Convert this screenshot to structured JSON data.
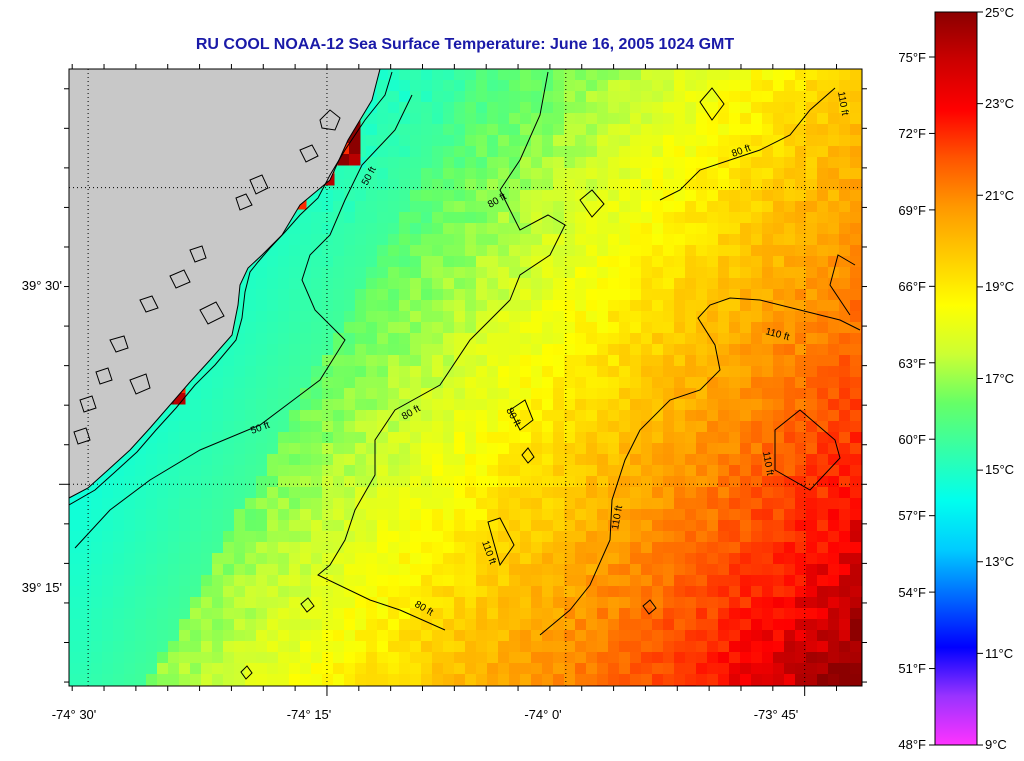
{
  "title": "RU COOL  NOAA-12  Sea Surface Temperature:  June 16, 2005 1024 GMT",
  "colors": {
    "title": "#1a1aa8",
    "land": "#c8c8c8",
    "coastline": "#000000",
    "contour": "#000000",
    "gridline": "#000000"
  },
  "map": {
    "lon_range": [
      -74.52,
      -73.69
    ],
    "lat_range": [
      39.08,
      39.6
    ],
    "lon_ticks": [
      {
        "value": -74.5,
        "label": "-74° 30'"
      },
      {
        "value": -74.25,
        "label": "-74° 15'"
      },
      {
        "value": -74.0,
        "label": "-74° 0'"
      },
      {
        "value": -73.75,
        "label": "-73° 45'"
      }
    ],
    "lat_ticks": [
      {
        "value": 39.5,
        "label": "39° 30'"
      },
      {
        "value": 39.25,
        "label": "39° 15'"
      }
    ],
    "contour_labels": [
      "50 ft",
      "50 ft",
      "80 ft",
      "80 ft",
      "80 ft",
      "80 ft",
      "80 ft",
      "110 ft",
      "110 ft",
      "110 ft",
      "110 ft",
      "110 ft"
    ]
  },
  "colorbar": {
    "celsius_labels": [
      "25°C",
      "23°C",
      "21°C",
      "19°C",
      "17°C",
      "15°C",
      "13°C",
      "11°C",
      "9°C"
    ],
    "fahrenheit_labels": [
      "75°F",
      "72°F",
      "69°F",
      "66°F",
      "63°F",
      "60°F",
      "57°F",
      "54°F",
      "51°F",
      "48°F"
    ],
    "stops": [
      "#ff33ff",
      "#9933ff",
      "#0000ff",
      "#0066ff",
      "#00ccff",
      "#00ffee",
      "#33ffaa",
      "#66ff66",
      "#ccff33",
      "#ffff00",
      "#ffcc00",
      "#ff9900",
      "#ff5500",
      "#ff0000",
      "#cc0000",
      "#8b0000"
    ]
  }
}
